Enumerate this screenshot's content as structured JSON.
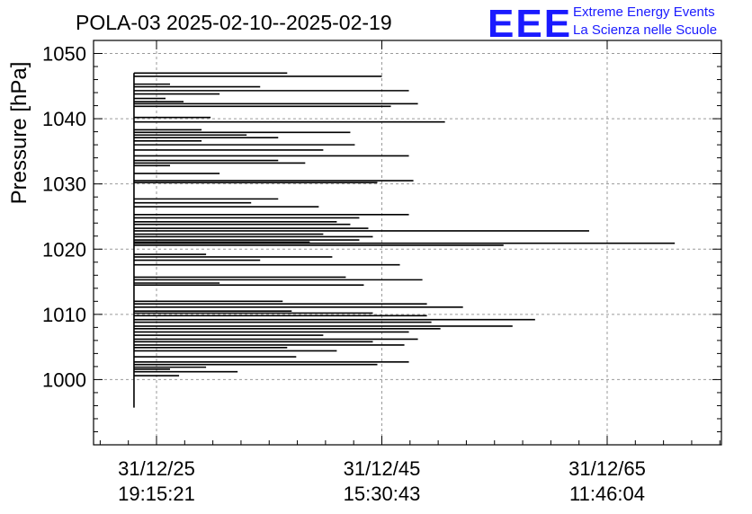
{
  "header": {
    "title": "POLA-03 2025-02-10--2025-02-19",
    "logo_mark": "EEE",
    "logo_line1": "Extreme Energy Events",
    "logo_line2": "La Scienza nelle Scuole",
    "logo_color": "#1a1aff"
  },
  "chart_data": {
    "type": "bar",
    "orientation": "horizontal",
    "title": "POLA-03 2025-02-10--2025-02-19",
    "xlabel": "",
    "ylabel": "Pressure [hPa]",
    "ylim": [
      990,
      1052
    ],
    "yticks": [
      1000,
      1010,
      1020,
      1030,
      1040,
      1050
    ],
    "ytick_labels": [
      "1000",
      "1010",
      "1020",
      "1030",
      "1040",
      "1050"
    ],
    "xticks": [
      {
        "line1": "31/12/25",
        "line2": "19:15:21"
      },
      {
        "line1": "31/12/45",
        "line2": "15:30:43"
      },
      {
        "line1": "31/12/65",
        "line2": "11:46:04"
      }
    ],
    "grid": true,
    "x_units": "relative position between first and last labelled tick (0 = 31/12/25, 1 = 31/12/65)",
    "baseline_x": -0.05,
    "ymin_line": 995.7,
    "bars": [
      {
        "y": 1047.0,
        "x": 0.29
      },
      {
        "y": 1046.5,
        "x": 0.5
      },
      {
        "y": 1045.3,
        "x": 0.03
      },
      {
        "y": 1044.9,
        "x": 0.23
      },
      {
        "y": 1044.3,
        "x": 0.56
      },
      {
        "y": 1043.8,
        "x": 0.14
      },
      {
        "y": 1043.1,
        "x": 0.02
      },
      {
        "y": 1042.6,
        "x": 0.06
      },
      {
        "y": 1042.3,
        "x": 0.58
      },
      {
        "y": 1041.9,
        "x": 0.52
      },
      {
        "y": 1040.2,
        "x": 0.12
      },
      {
        "y": 1039.5,
        "x": 0.64
      },
      {
        "y": 1038.3,
        "x": 0.1
      },
      {
        "y": 1037.9,
        "x": 0.43
      },
      {
        "y": 1037.5,
        "x": 0.2
      },
      {
        "y": 1037.1,
        "x": 0.27
      },
      {
        "y": 1036.6,
        "x": 0.1
      },
      {
        "y": 1036.0,
        "x": 0.44
      },
      {
        "y": 1035.2,
        "x": 0.37
      },
      {
        "y": 1034.3,
        "x": 0.56
      },
      {
        "y": 1033.6,
        "x": 0.27
      },
      {
        "y": 1033.2,
        "x": 0.33
      },
      {
        "y": 1032.8,
        "x": 0.03
      },
      {
        "y": 1031.6,
        "x": 0.14
      },
      {
        "y": 1030.5,
        "x": 0.57
      },
      {
        "y": 1030.2,
        "x": 0.49
      },
      {
        "y": 1027.7,
        "x": 0.27
      },
      {
        "y": 1027.1,
        "x": 0.21
      },
      {
        "y": 1026.5,
        "x": 0.36
      },
      {
        "y": 1025.3,
        "x": 0.56
      },
      {
        "y": 1024.8,
        "x": 0.45
      },
      {
        "y": 1024.2,
        "x": 0.4
      },
      {
        "y": 1023.8,
        "x": 0.43
      },
      {
        "y": 1023.2,
        "x": 0.47
      },
      {
        "y": 1022.8,
        "x": 0.96
      },
      {
        "y": 1022.3,
        "x": 0.37
      },
      {
        "y": 1021.9,
        "x": 0.48
      },
      {
        "y": 1021.4,
        "x": 0.45
      },
      {
        "y": 1021.1,
        "x": 0.34
      },
      {
        "y": 1020.9,
        "x": 1.15
      },
      {
        "y": 1020.6,
        "x": 0.77
      },
      {
        "y": 1019.2,
        "x": 0.11
      },
      {
        "y": 1018.8,
        "x": 0.39
      },
      {
        "y": 1018.3,
        "x": 0.23
      },
      {
        "y": 1017.6,
        "x": 0.54
      },
      {
        "y": 1015.7,
        "x": 0.42
      },
      {
        "y": 1015.3,
        "x": 0.59
      },
      {
        "y": 1014.8,
        "x": 0.14
      },
      {
        "y": 1014.5,
        "x": 0.46
      },
      {
        "y": 1012.0,
        "x": 0.28
      },
      {
        "y": 1011.6,
        "x": 0.6
      },
      {
        "y": 1011.1,
        "x": 0.68
      },
      {
        "y": 1010.5,
        "x": 0.3
      },
      {
        "y": 1010.2,
        "x": 0.48
      },
      {
        "y": 1009.8,
        "x": 0.6
      },
      {
        "y": 1009.2,
        "x": 0.84
      },
      {
        "y": 1008.8,
        "x": 0.61
      },
      {
        "y": 1008.2,
        "x": 0.79
      },
      {
        "y": 1007.8,
        "x": 0.63
      },
      {
        "y": 1007.3,
        "x": 0.56
      },
      {
        "y": 1006.8,
        "x": 0.37
      },
      {
        "y": 1006.2,
        "x": 0.58
      },
      {
        "y": 1005.8,
        "x": 0.48
      },
      {
        "y": 1005.3,
        "x": 0.55
      },
      {
        "y": 1004.9,
        "x": 0.29
      },
      {
        "y": 1004.4,
        "x": 0.4
      },
      {
        "y": 1003.5,
        "x": 0.31
      },
      {
        "y": 1002.7,
        "x": 0.56
      },
      {
        "y": 1002.3,
        "x": 0.49
      },
      {
        "y": 1001.9,
        "x": 0.11
      },
      {
        "y": 1001.6,
        "x": 0.03
      },
      {
        "y": 1001.2,
        "x": 0.18
      },
      {
        "y": 1000.6,
        "x": 0.05
      }
    ]
  }
}
